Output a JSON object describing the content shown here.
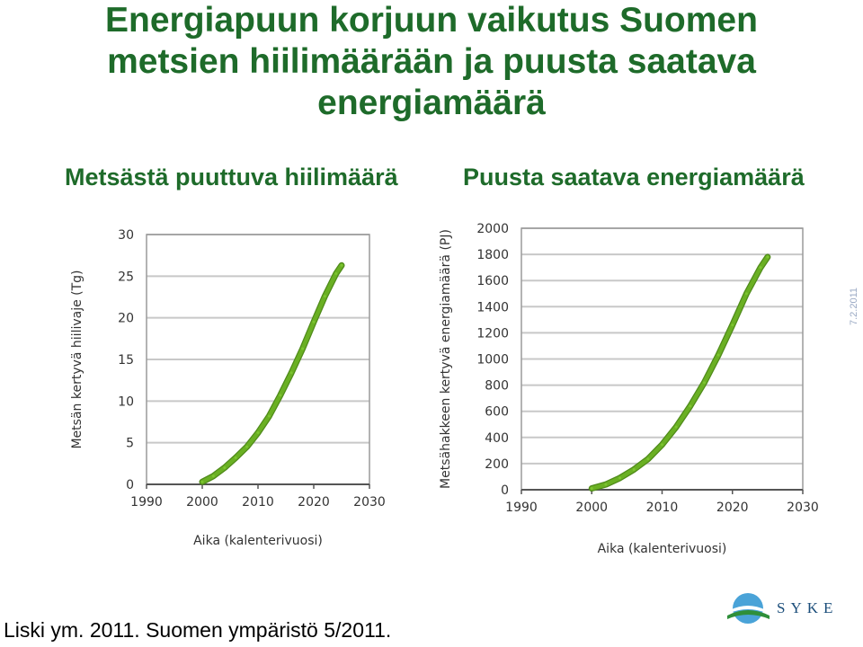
{
  "title": {
    "line1": "Energiapuun korjuun vaikutus Suomen",
    "line2": "metsien hiilimäärään ja puusta saatava",
    "line3": "energiamäärä"
  },
  "subtitles": {
    "left": "Metsästä puuttuva hiilimäärä",
    "right": "Puusta saatava energiamäärä"
  },
  "chart_data": [
    {
      "type": "line",
      "title": "",
      "xlabel": "Aika (kalenterivuosi)",
      "ylabel": "Metsän kertyvä hiilivaje (Tg)",
      "xlim": [
        1990,
        2030
      ],
      "ylim": [
        0,
        30
      ],
      "xticks": [
        1990,
        2000,
        2010,
        2020,
        2030
      ],
      "yticks": [
        0,
        5,
        10,
        15,
        20,
        25,
        30
      ],
      "grid": "horizontal",
      "color": "#6ab023",
      "series": [
        {
          "x": [
            2000,
            2002,
            2004,
            2006,
            2008,
            2010,
            2012,
            2014,
            2016,
            2018,
            2020,
            2022,
            2024,
            2025
          ],
          "values": [
            0.3,
            1.0,
            2.0,
            3.2,
            4.5,
            6.2,
            8.2,
            10.7,
            13.4,
            16.3,
            19.5,
            22.6,
            25.3,
            26.3
          ]
        }
      ]
    },
    {
      "type": "line",
      "title": "",
      "xlabel": "Aika (kalenterivuosi)",
      "ylabel": "Metsähakkeen kertyvä energiamäärä (PJ)",
      "xlim": [
        1990,
        2030
      ],
      "ylim": [
        0,
        2000
      ],
      "xticks": [
        1990,
        2000,
        2010,
        2020,
        2030
      ],
      "yticks": [
        0,
        200,
        400,
        600,
        800,
        1000,
        1200,
        1400,
        1600,
        1800,
        2000
      ],
      "grid": "horizontal",
      "color": "#6ab023",
      "series": [
        {
          "x": [
            2000,
            2002,
            2004,
            2006,
            2008,
            2010,
            2012,
            2014,
            2016,
            2018,
            2020,
            2022,
            2024,
            2025
          ],
          "values": [
            10,
            40,
            90,
            155,
            235,
            345,
            480,
            640,
            820,
            1030,
            1260,
            1500,
            1700,
            1780
          ]
        }
      ]
    }
  ],
  "date_stamp": "7.2.2011",
  "citation": "Liski ym. 2011. Suomen ympäristö 5/2011.",
  "logo": {
    "text": "SYKE",
    "icon": "syke-logo-icon",
    "colors": [
      "#4aa3d8",
      "#2f8f3a"
    ]
  }
}
